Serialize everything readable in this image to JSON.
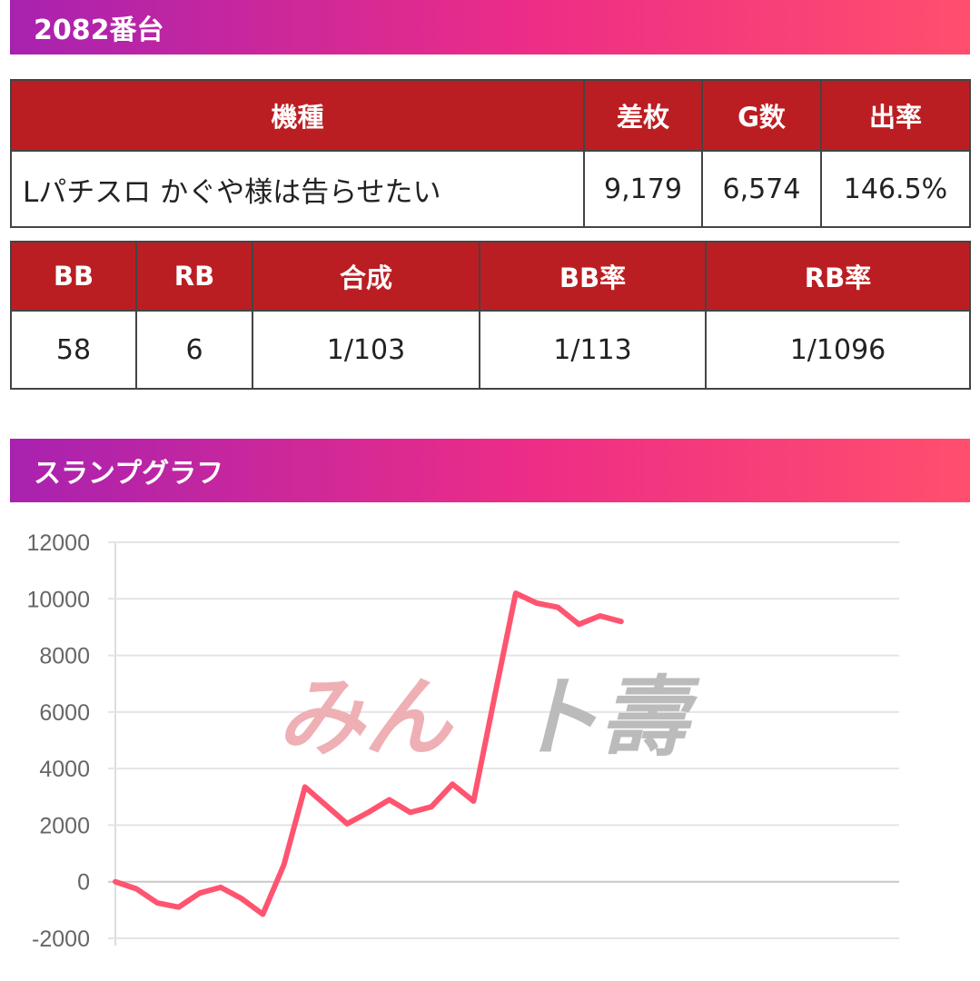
{
  "machine_header": {
    "title": "2082番台"
  },
  "summary_table": {
    "headers": [
      "機種",
      "差枚",
      "G数",
      "出率"
    ],
    "row": [
      "Lパチスロ かぐや様は告らせたい",
      "9,179",
      "6,574",
      "146.5%"
    ]
  },
  "bonus_table": {
    "headers": [
      "BB",
      "RB",
      "合成",
      "BB率",
      "RB率"
    ],
    "row": [
      "58",
      "6",
      "1/103",
      "1/113",
      "1/1096"
    ]
  },
  "slump_header": {
    "title": "スランプグラフ"
  },
  "colors": {
    "banner_gradient": [
      "#a822b0",
      "#ee2d86",
      "#ff4f6d"
    ],
    "table_header": "#bb1e22",
    "line": "#ff5470",
    "watermark_left": "#eeb0b4",
    "watermark_right": "#bbbbbb"
  },
  "watermark": {
    "left_text": "みん",
    "right_text": "ト壽"
  },
  "chart_data": {
    "type": "line",
    "title": "",
    "xlabel": "",
    "ylabel": "",
    "ylim": [
      -2000,
      12000
    ],
    "yticks": [
      12000,
      10000,
      8000,
      6000,
      4000,
      2000,
      0,
      -2000
    ],
    "grid": true,
    "series": [
      {
        "values": [
          0,
          -250,
          -750,
          -900,
          -400,
          -200,
          -600,
          -1150,
          600,
          3350,
          2700,
          2050,
          2450,
          2900,
          2450,
          2650,
          3450,
          2850,
          6550,
          10200,
          9850,
          9700,
          9100,
          9400,
          9200
        ]
      }
    ]
  }
}
